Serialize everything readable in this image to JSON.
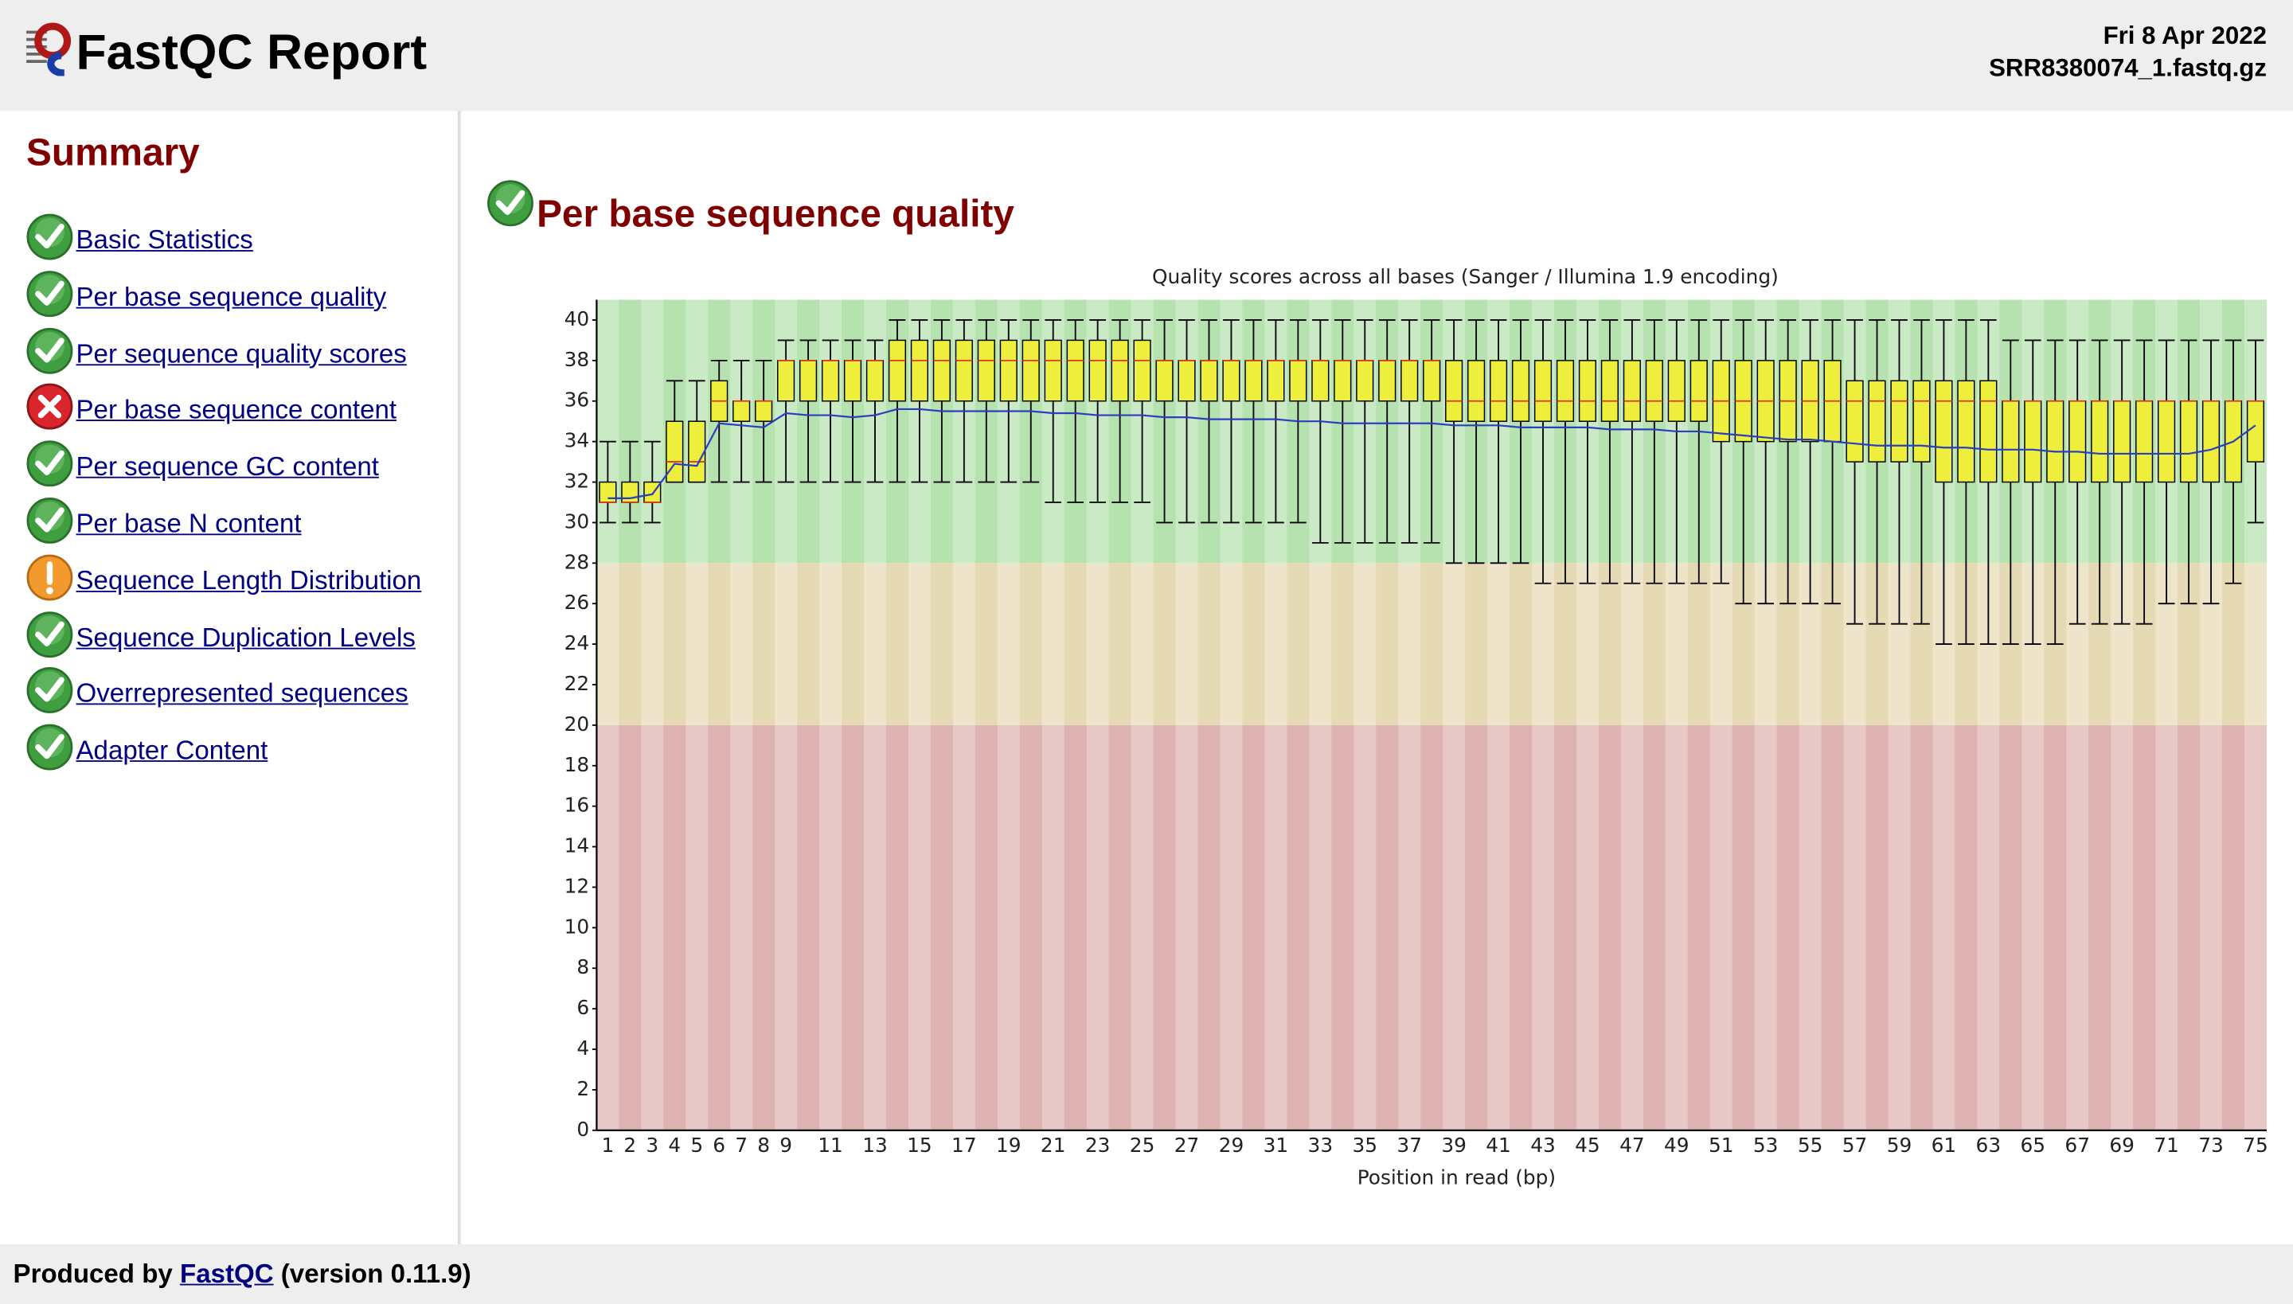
{
  "header": {
    "title": "FastQC Report",
    "date": "Fri 8 Apr 2022",
    "filename": "SRR8380074_1.fastq.gz"
  },
  "summary": {
    "title": "Summary",
    "items": [
      "Basic Statistics",
      "Per base sequence quality",
      "Per sequence quality scores",
      "Per base sequence content",
      "Per sequence GC content",
      "Per base N content",
      "Sequence Length Distribution",
      "Sequence Duplication Levels",
      "Overrepresented sequences",
      "Adapter Content"
    ]
  },
  "section": {
    "title": "Per base sequence quality"
  },
  "chart_data": {
    "type": "box",
    "title": "Quality scores across all bases (Sanger / Illumina 1.9 encoding)",
    "x_label": "Position in read (bp)",
    "categories": [
      "1",
      "2",
      "3",
      "4",
      "5",
      "6",
      "7",
      "8",
      "9",
      null,
      "11",
      null,
      "13",
      null,
      "15",
      null,
      "17",
      null,
      "19",
      null,
      "21",
      null,
      "23",
      null,
      "25",
      null,
      "27",
      null,
      "29",
      null,
      "31",
      null,
      "33",
      null,
      "35",
      null,
      "37",
      null,
      "39",
      null,
      "41",
      null,
      "43",
      null,
      "45",
      null,
      "47",
      null,
      "49",
      null,
      "51",
      null,
      "53",
      null,
      "55",
      null,
      "57",
      null,
      "59",
      null,
      "61",
      null,
      "63",
      null,
      "65",
      null,
      "67",
      null,
      "69",
      null,
      "71",
      null,
      "73",
      null,
      "75"
    ],
    "lower_whisker": [
      30,
      30,
      30,
      32,
      32,
      32,
      32,
      32,
      32,
      32,
      32,
      32,
      32,
      32,
      32,
      32,
      32,
      32,
      32,
      32,
      31,
      31,
      31,
      31,
      31,
      30,
      30,
      30,
      30,
      30,
      30,
      30,
      29,
      29,
      29,
      29,
      29,
      29,
      28,
      28,
      28,
      28,
      27,
      27,
      27,
      27,
      27,
      27,
      27,
      27,
      27,
      26,
      26,
      26,
      26,
      26,
      25,
      25,
      25,
      25,
      24,
      24,
      24,
      24,
      24,
      24,
      25,
      25,
      25,
      25,
      26,
      26,
      26,
      27,
      30
    ],
    "q1": [
      31,
      31,
      31,
      32,
      32,
      35,
      35,
      35,
      36,
      36,
      36,
      36,
      36,
      36,
      36,
      36,
      36,
      36,
      36,
      36,
      36,
      36,
      36,
      36,
      36,
      36,
      36,
      36,
      36,
      36,
      36,
      36,
      36,
      36,
      36,
      36,
      36,
      36,
      35,
      35,
      35,
      35,
      35,
      35,
      35,
      35,
      35,
      35,
      35,
      35,
      34,
      34,
      34,
      34,
      34,
      34,
      33,
      33,
      33,
      33,
      32,
      32,
      32,
      32,
      32,
      32,
      32,
      32,
      32,
      32,
      32,
      32,
      32,
      32,
      33
    ],
    "median": [
      31,
      31,
      31,
      33,
      33,
      36,
      36,
      36,
      38,
      38,
      38,
      38,
      38,
      38,
      38,
      38,
      38,
      38,
      38,
      38,
      38,
      38,
      38,
      38,
      38,
      38,
      38,
      38,
      38,
      38,
      38,
      38,
      38,
      38,
      38,
      38,
      38,
      38,
      36,
      36,
      36,
      36,
      36,
      36,
      36,
      36,
      36,
      36,
      36,
      36,
      36,
      36,
      36,
      36,
      36,
      36,
      36,
      36,
      36,
      36,
      36,
      36,
      36,
      36,
      36,
      36,
      36,
      36,
      36,
      36,
      36,
      36,
      36,
      36,
      36
    ],
    "q3": [
      32,
      32,
      32,
      35,
      35,
      37,
      36,
      36,
      38,
      38,
      38,
      38,
      38,
      39,
      39,
      39,
      39,
      39,
      39,
      39,
      39,
      39,
      39,
      39,
      39,
      38,
      38,
      38,
      38,
      38,
      38,
      38,
      38,
      38,
      38,
      38,
      38,
      38,
      38,
      38,
      38,
      38,
      38,
      38,
      38,
      38,
      38,
      38,
      38,
      38,
      38,
      38,
      38,
      38,
      38,
      38,
      37,
      37,
      37,
      37,
      37,
      37,
      37,
      36,
      36,
      36,
      36,
      36,
      36,
      36,
      36,
      36,
      36,
      36,
      36
    ],
    "upper_whisker": [
      34,
      34,
      34,
      37,
      37,
      38,
      38,
      38,
      39,
      39,
      39,
      39,
      39,
      40,
      40,
      40,
      40,
      40,
      40,
      40,
      40,
      40,
      40,
      40,
      40,
      40,
      40,
      40,
      40,
      40,
      40,
      40,
      40,
      40,
      40,
      40,
      40,
      40,
      40,
      40,
      40,
      40,
      40,
      40,
      40,
      40,
      40,
      40,
      40,
      40,
      40,
      40,
      40,
      40,
      40,
      40,
      40,
      40,
      40,
      40,
      40,
      40,
      40,
      39,
      39,
      39,
      39,
      39,
      39,
      39,
      39,
      39,
      39,
      39,
      39
    ],
    "mean": [
      31.2,
      31.2,
      31.4,
      32.9,
      32.8,
      34.9,
      34.8,
      34.7,
      35.4,
      35.3,
      35.3,
      35.2,
      35.3,
      35.6,
      35.6,
      35.5,
      35.5,
      35.5,
      35.5,
      35.5,
      35.4,
      35.4,
      35.3,
      35.3,
      35.3,
      35.2,
      35.2,
      35.1,
      35.1,
      35.1,
      35.1,
      35.0,
      35.0,
      34.9,
      34.9,
      34.9,
      34.9,
      34.9,
      34.8,
      34.8,
      34.8,
      34.7,
      34.7,
      34.7,
      34.7,
      34.6,
      34.6,
      34.6,
      34.5,
      34.5,
      34.4,
      34.3,
      34.2,
      34.1,
      34.1,
      34.0,
      33.9,
      33.8,
      33.8,
      33.8,
      33.7,
      33.7,
      33.6,
      33.6,
      33.6,
      33.5,
      33.5,
      33.4,
      33.4,
      33.4,
      33.4,
      33.4,
      33.6,
      34.0,
      34.8
    ],
    "box_color": "#eeee3c",
    "median_color": "#d93a1e",
    "mean_color": "#2a3fc0",
    "bands": [
      {
        "from": 0,
        "to": 20,
        "color": "#dfb2b2"
      },
      {
        "from": 20,
        "to": 28,
        "color": "#e6dab4"
      },
      {
        "from": 28,
        "to": 41,
        "color": "#b6e2b0"
      }
    ],
    "ylim": [
      0,
      41
    ],
    "yticks": [
      0,
      2,
      4,
      6,
      8,
      10,
      12,
      14,
      16,
      18,
      20,
      22,
      24,
      26,
      28,
      30,
      32,
      34,
      36,
      38,
      40
    ]
  },
  "footer": {
    "prefix": "Produced by",
    "link": "FastQC",
    "suffix": "(version 0.11.9)"
  }
}
